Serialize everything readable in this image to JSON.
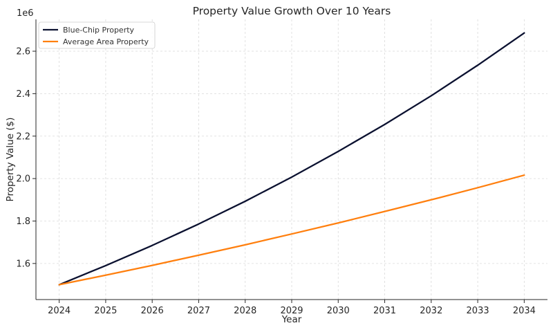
{
  "chart_data": {
    "type": "line",
    "title": "Property Value Growth Over 10 Years",
    "xlabel": "Year",
    "ylabel": "Property Value ($)",
    "y_offset_label": "1e6",
    "x": [
      2024,
      2025,
      2026,
      2027,
      2028,
      2029,
      2030,
      2031,
      2032,
      2033,
      2034
    ],
    "xlim": [
      2023.5,
      2034.5
    ],
    "ylim": [
      1.43,
      2.75
    ],
    "y_display_scale": 1000000,
    "yticks": [
      1.6,
      1.8,
      2.0,
      2.2,
      2.4,
      2.6
    ],
    "ytick_labels": [
      "1.6",
      "1.8",
      "2.0",
      "2.2",
      "2.4",
      "2.6"
    ],
    "grid": true,
    "legend_position": "top-left",
    "series": [
      {
        "name": "Blue-Chip Property",
        "color": "#0b1130",
        "values": [
          1.5,
          1.59,
          1.685,
          1.786,
          1.893,
          2.007,
          2.128,
          2.255,
          2.39,
          2.534,
          2.686
        ]
      },
      {
        "name": "Average Area Property",
        "color": "#ff7f0e",
        "values": [
          1.5,
          1.545,
          1.591,
          1.639,
          1.688,
          1.739,
          1.791,
          1.845,
          1.9,
          1.957,
          2.016
        ]
      }
    ]
  }
}
